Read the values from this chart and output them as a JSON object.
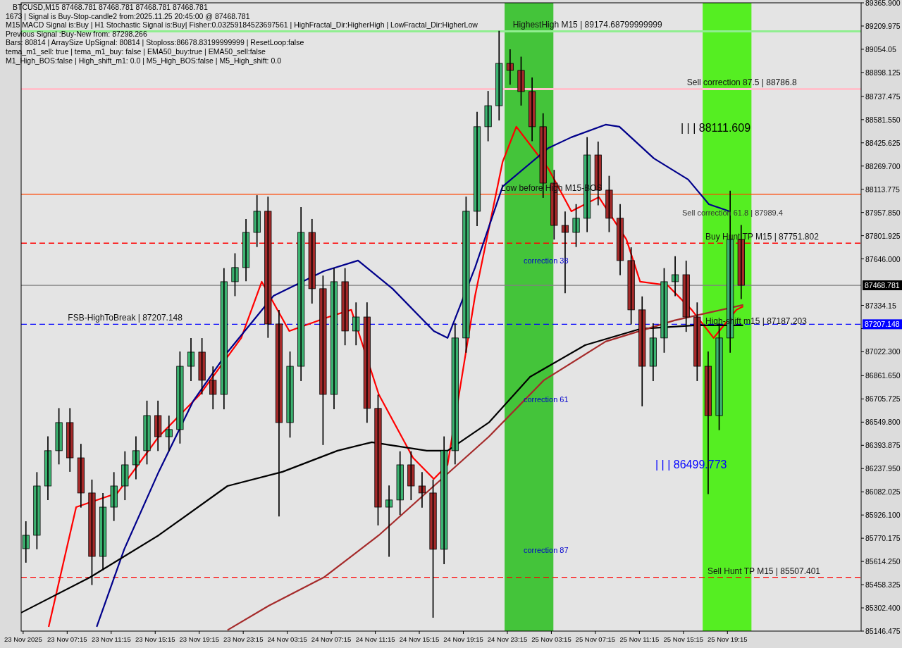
{
  "chart_data": {
    "type": "candlestick",
    "x": [
      "2025-11-23T03:30",
      "2025-11-23T04:30",
      "2025-11-23T05:30",
      "2025-11-23T06:30",
      "2025-11-23T07:30",
      "2025-11-23T08:30",
      "2025-11-23T09:30",
      "2025-11-23T10:30",
      "2025-11-23T11:30",
      "2025-11-23T12:30",
      "2025-11-23T13:30",
      "2025-11-23T14:30",
      "2025-11-23T15:30",
      "2025-11-23T16:30",
      "2025-11-23T17:30",
      "2025-11-23T18:30",
      "2025-11-23T19:30",
      "2025-11-23T20:30",
      "2025-11-23T21:30",
      "2025-11-23T22:30",
      "2025-11-23T23:30",
      "2025-11-24T00:30",
      "2025-11-24T01:30",
      "2025-11-24T02:30",
      "2025-11-24T03:30",
      "2025-11-24T04:30",
      "2025-11-24T05:30",
      "2025-11-24T06:30",
      "2025-11-24T07:30",
      "2025-11-24T08:30",
      "2025-11-24T09:30",
      "2025-11-24T10:30",
      "2025-11-24T11:30",
      "2025-11-24T12:30",
      "2025-11-24T13:30",
      "2025-11-24T14:30",
      "2025-11-24T15:30",
      "2025-11-24T16:30",
      "2025-11-24T17:30",
      "2025-11-24T18:30",
      "2025-11-24T19:30",
      "2025-11-24T20:30",
      "2025-11-24T21:30",
      "2025-11-24T22:30",
      "2025-11-24T23:30",
      "2025-11-25T00:30",
      "2025-11-25T01:30",
      "2025-11-25T02:30",
      "2025-11-25T03:30",
      "2025-11-25T04:30",
      "2025-11-25T05:30",
      "2025-11-25T06:30",
      "2025-11-25T07:30",
      "2025-11-25T08:30",
      "2025-11-25T09:30",
      "2025-11-25T10:30",
      "2025-11-25T11:30",
      "2025-11-25T12:30",
      "2025-11-25T13:30",
      "2025-11-25T14:30",
      "2025-11-25T15:30",
      "2025-11-25T16:30",
      "2025-11-25T17:30",
      "2025-11-25T18:30",
      "2025-11-25T19:30",
      "2025-11-25T20:30"
    ],
    "ohlc": [
      [
        85700,
        85880,
        85610,
        85790
      ],
      [
        85790,
        86210,
        85700,
        86121
      ],
      [
        86121,
        86450,
        86030,
        86358
      ],
      [
        86358,
        86640,
        86270,
        86547
      ],
      [
        86547,
        86640,
        86220,
        86310
      ],
      [
        86310,
        86400,
        85980,
        86074
      ],
      [
        86074,
        86160,
        85460,
        85648
      ],
      [
        85648,
        86070,
        85560,
        85979
      ],
      [
        85979,
        86210,
        85890,
        86121
      ],
      [
        86121,
        86350,
        86030,
        86263
      ],
      [
        86263,
        86450,
        86170,
        86358
      ],
      [
        86358,
        86690,
        86270,
        86594
      ],
      [
        86594,
        86690,
        86360,
        86452
      ],
      [
        86452,
        86590,
        86360,
        86500
      ],
      [
        86500,
        87020,
        86410,
        86925
      ],
      [
        86925,
        87110,
        86830,
        87020
      ],
      [
        87020,
        87110,
        86740,
        86831
      ],
      [
        86831,
        86920,
        86640,
        86736
      ],
      [
        86736,
        87580,
        86640,
        87493
      ],
      [
        87493,
        87680,
        87400,
        87588
      ],
      [
        87588,
        87910,
        87500,
        87824
      ],
      [
        87824,
        88070,
        87730,
        87966
      ],
      [
        87966,
        88060,
        87120,
        87209
      ],
      [
        87209,
        87300,
        85920,
        86547
      ],
      [
        86547,
        87020,
        86450,
        86925
      ],
      [
        86925,
        87990,
        86830,
        87824
      ],
      [
        87824,
        87910,
        87350,
        87446
      ],
      [
        87446,
        87530,
        86400,
        86736
      ],
      [
        86736,
        87580,
        86640,
        87493
      ],
      [
        87493,
        87580,
        87070,
        87162
      ],
      [
        87162,
        87350,
        87070,
        87256
      ],
      [
        87256,
        87350,
        86550,
        86642
      ],
      [
        86642,
        86730,
        85860,
        85979
      ],
      [
        85979,
        86120,
        85650,
        86027
      ],
      [
        86027,
        86350,
        85930,
        86263
      ],
      [
        86263,
        86350,
        86030,
        86121
      ],
      [
        86121,
        86210,
        85980,
        86074
      ],
      [
        86074,
        86160,
        85240,
        85696
      ],
      [
        85696,
        86450,
        85600,
        86358
      ],
      [
        86358,
        87210,
        86270,
        87115
      ],
      [
        87115,
        88060,
        87020,
        87966
      ],
      [
        87966,
        88630,
        87870,
        88534
      ],
      [
        88534,
        88770,
        88440,
        88675
      ],
      [
        88675,
        89174,
        88580,
        88959
      ],
      [
        88959,
        89050,
        88820,
        88912
      ],
      [
        88912,
        89000,
        88680,
        88770
      ],
      [
        88770,
        88860,
        88440,
        88534
      ],
      [
        88534,
        88620,
        88060,
        88155
      ],
      [
        88155,
        88240,
        87780,
        87871
      ],
      [
        87871,
        87960,
        87420,
        87824
      ],
      [
        87824,
        88010,
        87730,
        87919
      ],
      [
        87919,
        88460,
        87830,
        88344
      ],
      [
        88344,
        88430,
        88010,
        88108
      ],
      [
        88108,
        88200,
        87830,
        87919
      ],
      [
        87919,
        88010,
        87540,
        87635
      ],
      [
        87635,
        87720,
        87210,
        87304
      ],
      [
        87304,
        87390,
        86660,
        86925
      ],
      [
        86925,
        87210,
        86830,
        87115
      ],
      [
        87115,
        87580,
        87020,
        87493
      ],
      [
        87493,
        87660,
        87400,
        87540
      ],
      [
        87540,
        87630,
        87160,
        87256
      ],
      [
        87256,
        87350,
        86830,
        86925
      ],
      [
        86925,
        87020,
        86070,
        86594
      ],
      [
        86594,
        87210,
        86500,
        87115
      ],
      [
        87115,
        88100,
        87020,
        87777
      ],
      [
        87777,
        87870,
        87380,
        87468.781
      ]
    ],
    "series": [
      {
        "type": "line",
        "color": "#ff0000",
        "x": [
          "2025-11-23T05:34",
          "2025-11-23T08:04",
          "2025-11-23T11:49",
          "2025-11-23T15:34",
          "2025-11-23T19:19",
          "2025-11-23T23:04",
          "2025-11-24T00:56",
          "2025-11-24T03:26",
          "2025-11-24T07:00",
          "2025-11-24T09:04",
          "2025-11-24T11:34",
          "2025-11-24T14:41",
          "2025-11-24T16:34",
          "2025-11-24T17:49",
          "2025-11-24T20:19",
          "2025-11-24T22:49",
          "2025-11-25T00:04",
          "2025-11-25T03:00",
          "2025-11-25T05:04",
          "2025-11-25T07:34",
          "2025-11-25T10:04",
          "2025-11-25T11:19",
          "2025-11-25T13:49",
          "2025-11-25T16:00",
          "2025-11-25T18:00",
          "2025-11-25T20:04",
          "2025-11-25T20:41"
        ],
        "values": [
          85175,
          85979,
          86074,
          86452,
          86736,
          87115,
          87493,
          87162,
          87256,
          87304,
          86736,
          86310,
          86168,
          86263,
          87398,
          88297,
          88534,
          88250,
          87966,
          88061,
          87777,
          87493,
          87469,
          87304,
          87115,
          87304,
          87327
        ]
      },
      {
        "type": "line",
        "color": "#00008b",
        "x": [
          "2025-11-23T09:56",
          "2025-11-23T12:26",
          "2025-11-23T15:34",
          "2025-11-23T18:41",
          "2025-11-23T21:49",
          "2025-11-24T02:00",
          "2025-11-24T06:34",
          "2025-11-24T09:41",
          "2025-11-24T12:49",
          "2025-11-24T16:34",
          "2025-11-24T17:49",
          "2025-11-24T20:19",
          "2025-11-24T22:49",
          "2025-11-25T03:00",
          "2025-11-25T05:04",
          "2025-11-25T08:11",
          "2025-11-25T09:26",
          "2025-11-25T12:34",
          "2025-11-25T15:41",
          "2025-11-25T17:34",
          "2025-11-25T19:26"
        ],
        "values": [
          85175,
          85696,
          86216,
          86689,
          87020,
          87398,
          87564,
          87635,
          87446,
          87162,
          87115,
          87588,
          88132,
          88392,
          88463,
          88548,
          88534,
          88321,
          88179,
          88013,
          87966
        ]
      },
      {
        "type": "line",
        "color": "#000000",
        "x": [
          "2025-11-23T03:04",
          "2025-11-23T09:19",
          "2025-11-23T15:34",
          "2025-11-23T21:49",
          "2025-11-24T02:49",
          "2025-11-24T07:49",
          "2025-11-24T10:56",
          "2025-11-24T15:56",
          "2025-11-24T17:49",
          "2025-11-24T21:34",
          "2025-11-25T01:19",
          "2025-11-25T06:19",
          "2025-11-25T11:19",
          "2025-11-25T16:19",
          "2025-11-25T20:41"
        ],
        "values": [
          85270,
          85507,
          85790,
          86121,
          86216,
          86358,
          86415,
          86358,
          86358,
          86547,
          86854,
          87067,
          87176,
          87200,
          87200
        ]
      },
      {
        "type": "line",
        "color": "#a52a2a",
        "x": [
          "2025-11-23T21:49",
          "2025-11-24T01:34",
          "2025-11-24T06:34",
          "2025-11-24T11:34",
          "2025-11-24T16:34",
          "2025-11-24T21:34",
          "2025-11-25T02:34",
          "2025-11-25T08:11",
          "2025-11-25T14:26",
          "2025-11-25T20:41"
        ],
        "values": [
          85153,
          85317,
          85507,
          85790,
          86121,
          86452,
          86831,
          87091,
          87233,
          87337
        ]
      }
    ],
    "xlim": [
      "2025-11-23T03:04",
      "2025-11-26T07:24"
    ],
    "xticks": [
      {
        "value": "2025-11-23T03:15",
        "label": "23 Nov 2025"
      },
      {
        "value": "2025-11-23T07:15",
        "label": "23 Nov 07:15"
      },
      {
        "value": "2025-11-23T11:15",
        "label": "23 Nov 11:15"
      },
      {
        "value": "2025-11-23T15:15",
        "label": "23 Nov 15:15"
      },
      {
        "value": "2025-11-23T19:15",
        "label": "23 Nov 19:15"
      },
      {
        "value": "2025-11-23T23:15",
        "label": "23 Nov 23:15"
      },
      {
        "value": "2025-11-24T03:15",
        "label": "24 Nov 03:15"
      },
      {
        "value": "2025-11-24T07:15",
        "label": "24 Nov 07:15"
      },
      {
        "value": "2025-11-24T11:15",
        "label": "24 Nov 11:15"
      },
      {
        "value": "2025-11-24T15:15",
        "label": "24 Nov 15:15"
      },
      {
        "value": "2025-11-24T19:15",
        "label": "24 Nov 19:15"
      },
      {
        "value": "2025-11-24T23:15",
        "label": "24 Nov 23:15"
      },
      {
        "value": "2025-11-25T03:15",
        "label": "25 Nov 03:15"
      },
      {
        "value": "2025-11-25T07:15",
        "label": "25 Nov 07:15"
      },
      {
        "value": "2025-11-25T11:15",
        "label": "25 Nov 11:15"
      },
      {
        "value": "2025-11-25T15:15",
        "label": "25 Nov 15:15"
      },
      {
        "value": "2025-11-25T19:15",
        "label": "25 Nov 19:15"
      }
    ],
    "ylim": [
      85146.475,
      89365.9
    ],
    "yticks": [
      {
        "value": 89365.9,
        "label": "89365.900"
      },
      89209.975,
      89054.05,
      88898.125,
      88737.475,
      {
        "value": 88581.55,
        "label": "88581.550"
      },
      88425.625,
      {
        "value": 88269.7,
        "label": "88269.700"
      },
      88113.775,
      {
        "value": 87957.85,
        "label": "87957.850"
      },
      87801.925,
      {
        "value": 87646,
        "label": "87646.000"
      },
      87334.15,
      {
        "value": 87178.225,
        "label": null
      },
      {
        "value": 87022.3,
        "label": "87022.300"
      },
      {
        "value": 86861.65,
        "label": "86861.650"
      },
      86705.725,
      {
        "value": 86549.8,
        "label": "86549.800"
      },
      86393.875,
      {
        "value": 86237.95,
        "label": "86237.950"
      },
      86082.025,
      {
        "value": 85926.1,
        "label": "85926.100"
      },
      85770.175,
      {
        "value": 85614.25,
        "label": "85614.250"
      },
      85458.325,
      {
        "value": 85302.4,
        "label": "85302.400"
      },
      85146.475
    ],
    "bands": [
      {
        "axis": "x",
        "from": "2025-11-24T23:00",
        "to": "2025-11-25T03:26",
        "color": "#44c43a"
      },
      {
        "axis": "x",
        "from": "2025-11-25T17:00",
        "to": "2025-11-25T21:26",
        "color": "#55ee22"
      }
    ],
    "ref_lines": [
      {
        "axis": "y",
        "value": 89174.688,
        "color": "#90ee90",
        "line_style": "solid"
      },
      {
        "axis": "y",
        "value": 88786.8,
        "color": "#ffc0cb",
        "line_style": "solid"
      },
      {
        "axis": "y",
        "value": 88080,
        "color": "#ff4500",
        "line_style": "solid"
      },
      {
        "axis": "y",
        "value": 87751.802,
        "color": "#ff0000",
        "line_style": "dashed"
      },
      {
        "axis": "y",
        "value": 87468.781,
        "label": "87468.781",
        "color": "#808080",
        "line_style": "solid"
      },
      {
        "axis": "y",
        "value": 87207.148,
        "label": "87207.148",
        "color": "#0000ff",
        "line_style": "dashed"
      },
      {
        "axis": "y",
        "value": 85507.401,
        "color": "#ff0000",
        "line_style": "dashed"
      }
    ],
    "annotations": [
      "BTCUSD,M15  87468.781 87468.781 87468.781 87468.781",
      "1673 | Signal is Buy-Stop-candle2 from:2025.11.25 20:45:00 @ 87468.781",
      "M15 MACD Signal is:Buy | H1 Stochastic Signal is:Buy| Fisher:0.03259184523697561 | HighFractal_Dir:HigherHigh | LowFractal_Dir:HigherLow",
      "Previous Signal :Buy-New from: 87298.266",
      "Bars: 80814 | ArraySize UpSignal: 80814 | Stoploss:86678.83199999999 | ResetLoop:false",
      "tema_m1_sell: true | tema_m1_buy: false | EMA50_buy:true | EMA50_sell:false",
      "M1_High_BOS:false | High_shift_m1: 0.0 | M5_High_BOS:false | M5_High_shift: 0.0",
      "Sell correction 61.8 | 87989.4",
      "| | | 88111.609",
      "| | | 86499.773",
      "correction 38",
      "correction 61",
      "correction 87",
      {
        "text": "FSB-HighToBreak | 87207.148",
        "x": "2025-11-23T07:19",
        "y": 87207.148
      },
      {
        "text": "HighestHigh    M15 | 89174.68799999999",
        "x": "2025-11-24T23:45",
        "y": 89174.688
      },
      {
        "text": "Sell correction 87.5 | 88786.8",
        "x": "2025-11-25T15:34",
        "y": 88786.8
      },
      {
        "text": "Low before High    M15-BOS",
        "x": "2025-11-24T22:41",
        "y": 88080
      },
      {
        "text": "Buy Hunt TP M15 | 87751.802",
        "x": "2025-11-25T17:15",
        "y": 87751.802
      },
      {
        "text": "High-shift m15 | 87187.203",
        "x": "2025-11-25T17:15",
        "y": 87187.203
      },
      {
        "text": "Sell Hunt TP M15 | 85507.401",
        "x": "2025-11-25T17:26",
        "y": 85507.401
      }
    ]
  }
}
